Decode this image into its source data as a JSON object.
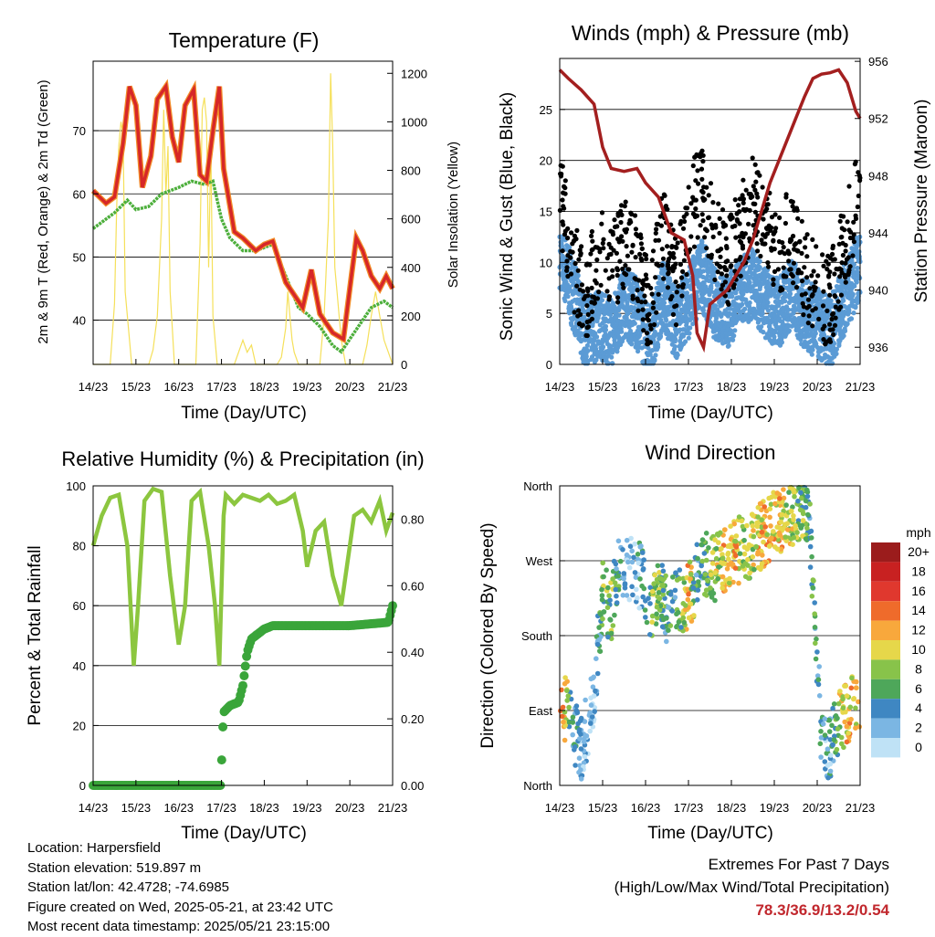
{
  "info": {
    "location": "Location: Harpersfield",
    "elevation": "Station elevation: 519.897 m",
    "latlon": "Station lat/lon: 42.4728; -74.6985",
    "created": "Figure created on Wed, 2025-05-21, at 23:42 UTC",
    "recent": "Most recent data timestamp: 2025/05/21 23:15:00"
  },
  "extremes": {
    "title": "Extremes For Past 7 Days",
    "subtitle": "(High/Low/Max Wind/Total Precipitation)",
    "values": "78.3/36.9/13.2/0.54"
  },
  "colors": {
    "temp": "#d62728",
    "temp9m": "#f28c28",
    "dewpoint": "#4daf3c",
    "solar": "#f5e05a",
    "wind": "#5b9bd5",
    "gust": "#000000",
    "pressure": "#a31f1f",
    "rh": "#8cc63f",
    "precip": "#3aa53a"
  },
  "chart_data": [
    {
      "type": "line",
      "title": "Temperature (F)",
      "xlabel": "Time (Day/UTC)",
      "ylabel": "2m & 9m T (Red, Orange) & 2m Td (Green)",
      "y2label": "Solar Insolation (Yellow)",
      "xticks": [
        "14/23",
        "15/23",
        "16/23",
        "17/23",
        "18/23",
        "19/23",
        "20/23",
        "21/23"
      ],
      "xlim": [
        0,
        7
      ],
      "ylim": [
        33,
        81
      ],
      "yticks": [
        40,
        50,
        60,
        70
      ],
      "y2lim": [
        0,
        1250
      ],
      "y2ticks": [
        0,
        200,
        400,
        600,
        800,
        1000,
        1200
      ],
      "series": [
        {
          "name": "2m T",
          "x": [
            0,
            0.3,
            0.5,
            0.7,
            0.85,
            1.0,
            1.15,
            1.35,
            1.5,
            1.7,
            1.85,
            2.0,
            2.15,
            2.35,
            2.5,
            2.65,
            2.8,
            2.95,
            3.05,
            3.3,
            3.5,
            3.8,
            4.0,
            4.2,
            4.5,
            4.7,
            4.9,
            5.1,
            5.3,
            5.6,
            5.85,
            6.0,
            6.15,
            6.3,
            6.5,
            6.7,
            6.85,
            7.0
          ],
          "y": [
            60.5,
            58.5,
            59.5,
            68,
            77,
            74,
            61,
            66,
            75,
            77,
            69,
            65,
            74,
            76.5,
            63,
            62,
            70,
            77,
            64,
            54,
            53,
            51,
            52,
            52.5,
            46,
            44,
            42,
            48,
            41,
            38,
            37,
            45,
            53,
            51,
            47,
            45,
            47,
            45
          ]
        },
        {
          "name": "2m Td",
          "x": [
            0,
            0.3,
            0.5,
            0.8,
            1.0,
            1.3,
            1.6,
            2.0,
            2.3,
            2.6,
            2.8,
            3.0,
            3.2,
            3.5,
            3.8,
            4.2,
            4.5,
            4.8,
            5.0,
            5.3,
            5.6,
            5.8,
            6.0,
            6.3,
            6.5,
            6.8,
            7.0
          ],
          "y": [
            54.5,
            56,
            57,
            59,
            57.5,
            58,
            60,
            61,
            62,
            61.5,
            62,
            56,
            53,
            51,
            51,
            52,
            47,
            42,
            41,
            39,
            36,
            35,
            37,
            40,
            42,
            43,
            42
          ]
        },
        {
          "name": "Solar Insolation",
          "axis": "y2",
          "x": [
            0,
            0.4,
            0.5,
            0.55,
            0.6,
            0.65,
            0.7,
            0.75,
            0.9,
            1.0,
            1.1,
            1.2,
            1.3,
            1.4,
            1.5,
            1.6,
            1.65,
            1.7,
            1.75,
            1.8,
            1.85,
            1.9,
            2.0,
            2.1,
            2.2,
            2.3,
            2.4,
            2.5,
            2.55,
            2.6,
            2.65,
            2.7,
            2.75,
            2.8,
            2.9,
            3.0,
            3.3,
            3.4,
            3.5,
            3.6,
            3.7,
            3.8,
            4.0,
            4.3,
            4.4,
            4.5,
            4.55,
            4.6,
            4.65,
            4.7,
            4.8,
            4.9,
            5.0,
            5.3,
            5.4,
            5.5,
            5.55,
            5.6,
            5.65,
            5.7,
            5.75,
            5.8,
            5.9,
            6.0,
            6.3,
            6.4,
            6.5,
            6.6,
            6.7,
            6.8,
            6.9,
            7.0
          ],
          "y": [
            0,
            0,
            250,
            650,
            900,
            1000,
            950,
            300,
            0,
            0,
            0,
            0,
            0,
            60,
            200,
            600,
            1050,
            700,
            900,
            300,
            150,
            0,
            0,
            0,
            0,
            0,
            0,
            500,
            1050,
            1100,
            1000,
            400,
            900,
            200,
            0,
            0,
            0,
            50,
            100,
            50,
            80,
            0,
            0,
            0,
            30,
            150,
            300,
            200,
            100,
            50,
            0,
            0,
            0,
            0,
            200,
            600,
            1200,
            900,
            400,
            300,
            200,
            100,
            0,
            0,
            0,
            80,
            200,
            300,
            200,
            100,
            50,
            0
          ]
        }
      ]
    },
    {
      "type": "scatter",
      "title": "Winds (mph) & Pressure (mb)",
      "xlabel": "Time (Day/UTC)",
      "ylabel": "Sonic Wind & Gust (Blue, Black)",
      "y2label": "Station Pressure (Maroon)",
      "xticks": [
        "14/23",
        "15/23",
        "16/23",
        "17/23",
        "18/23",
        "19/23",
        "20/23",
        "21/23"
      ],
      "xlim": [
        0,
        7
      ],
      "ylim": [
        0,
        30
      ],
      "yticks": [
        0,
        5,
        10,
        15,
        20,
        25
      ],
      "y2lim": [
        934.8,
        956.2
      ],
      "y2ticks": [
        936,
        940,
        944,
        948,
        952,
        956
      ],
      "series": [
        {
          "name": "Sonic Wind",
          "x": [
            0,
            0.3,
            0.6,
            0.9,
            1.2,
            1.5,
            1.8,
            2.1,
            2.4,
            2.7,
            3.0,
            3.3,
            3.6,
            3.9,
            4.2,
            4.5,
            4.8,
            5.1,
            5.4,
            5.7,
            6.0,
            6.3,
            6.6,
            6.9,
            7.0
          ],
          "y": [
            11,
            7,
            3,
            4,
            3,
            6,
            5,
            2,
            7,
            4,
            6,
            9,
            6,
            5,
            7,
            8,
            6,
            5,
            7,
            5,
            4,
            3,
            6,
            9,
            10
          ]
        },
        {
          "name": "Gust",
          "x": [
            0,
            0.3,
            0.6,
            0.9,
            1.2,
            1.5,
            1.8,
            2.1,
            2.4,
            2.7,
            3.0,
            3.3,
            3.6,
            3.9,
            4.2,
            4.5,
            4.8,
            5.1,
            5.4,
            5.7,
            6.0,
            6.3,
            6.6,
            6.9,
            7.0
          ],
          "y": [
            17,
            10,
            6,
            11,
            9,
            12,
            10,
            5,
            13,
            8,
            14,
            18,
            12,
            10,
            13,
            16,
            14,
            11,
            13,
            9,
            7,
            6,
            11,
            16,
            17
          ]
        },
        {
          "name": "Station Pressure",
          "axis": "y2",
          "x": [
            0,
            0.2,
            0.5,
            0.8,
            1.0,
            1.2,
            1.5,
            1.8,
            2.0,
            2.3,
            2.6,
            2.9,
            3.1,
            3.2,
            3.35,
            3.5,
            3.7,
            3.9,
            4.1,
            4.3,
            4.5,
            4.7,
            4.9,
            5.1,
            5.3,
            5.5,
            5.7,
            5.9,
            6.1,
            6.3,
            6.5,
            6.7,
            6.9,
            7.0
          ],
          "y": [
            955.4,
            954.8,
            954,
            953,
            950,
            948.5,
            948.3,
            948.5,
            947.5,
            946.5,
            944,
            943.5,
            941,
            937,
            936,
            939,
            939.5,
            940,
            941,
            942,
            943.5,
            945.5,
            947.5,
            949,
            950.5,
            952,
            953.5,
            954.8,
            955.1,
            955.2,
            955.4,
            954.5,
            952.5,
            952
          ]
        }
      ]
    },
    {
      "type": "line",
      "title": "Relative Humidity (%) & Precipitation (in)",
      "xlabel": "Time (Day/UTC)",
      "ylabel": "Percent & Total Rainfall",
      "xticks": [
        "14/23",
        "15/23",
        "16/23",
        "17/23",
        "18/23",
        "19/23",
        "20/23",
        "21/23"
      ],
      "xlim": [
        0,
        7
      ],
      "ylim": [
        0,
        100
      ],
      "yticks": [
        0,
        20,
        40,
        60,
        80,
        100
      ],
      "y2lim": [
        0,
        0.9
      ],
      "y2ticks": [
        "0.00",
        "0.20",
        "0.40",
        "0.60",
        "0.80"
      ],
      "series": [
        {
          "name": "Relative Humidity",
          "x": [
            0,
            0.2,
            0.4,
            0.6,
            0.8,
            0.95,
            1.05,
            1.2,
            1.4,
            1.6,
            1.8,
            2.0,
            2.15,
            2.3,
            2.5,
            2.7,
            2.85,
            2.95,
            3.05,
            3.1,
            3.3,
            3.5,
            3.7,
            3.9,
            4.1,
            4.3,
            4.5,
            4.7,
            4.9,
            5.0,
            5.2,
            5.4,
            5.6,
            5.8,
            5.95,
            6.1,
            6.3,
            6.5,
            6.7,
            6.85,
            7.0
          ],
          "y": [
            80,
            90,
            96,
            97,
            80,
            40,
            60,
            95,
            99,
            98,
            70,
            47,
            60,
            95,
            98,
            80,
            60,
            40,
            90,
            97,
            94,
            97,
            96,
            95,
            97,
            94,
            95,
            97,
            85,
            73,
            85,
            88,
            70,
            60,
            75,
            90,
            92,
            88,
            95,
            85,
            91
          ]
        },
        {
          "name": "Total Precipitation",
          "axis": "y2",
          "x": [
            0,
            2.98,
            3.0,
            3.02,
            3.05,
            3.2,
            3.4,
            3.5,
            3.6,
            3.7,
            3.8,
            3.9,
            4.0,
            4.2,
            4.5,
            5.0,
            6.0,
            6.9,
            7.0
          ],
          "y": [
            0,
            0,
            0.06,
            0.14,
            0.22,
            0.24,
            0.25,
            0.3,
            0.4,
            0.44,
            0.45,
            0.46,
            0.47,
            0.48,
            0.48,
            0.48,
            0.48,
            0.49,
            0.54
          ]
        }
      ]
    },
    {
      "type": "scatter",
      "title": "Wind Direction",
      "xlabel": "Time (Day/UTC)",
      "ylabel": "Direction (Colored By Speed)",
      "xticks": [
        "14/23",
        "15/23",
        "16/23",
        "17/23",
        "18/23",
        "19/23",
        "20/23",
        "21/23"
      ],
      "xlim": [
        0,
        7
      ],
      "ylim": [
        0,
        360
      ],
      "yticks": [
        "North",
        "East",
        "South",
        "West",
        "North"
      ],
      "legend": {
        "title": "mph",
        "position": "right",
        "labels": [
          "20+",
          "18",
          "16",
          "14",
          "12",
          "10",
          "8",
          "6",
          "4",
          "2",
          "0"
        ],
        "colors": [
          "#9b1c1c",
          "#c82121",
          "#e0382e",
          "#ef6b2b",
          "#f8a83c",
          "#e6d74a",
          "#88c34a",
          "#4ea75a",
          "#3f87c2",
          "#7bb6e3",
          "#bfe2f6"
        ]
      },
      "series": [
        {
          "name": "Direction",
          "x": [
            0.1,
            0.3,
            0.5,
            0.8,
            1.0,
            1.2,
            1.4,
            1.6,
            1.9,
            2.1,
            2.3,
            2.5,
            2.8,
            3.0,
            3.2,
            3.4,
            3.6,
            3.8,
            4.0,
            4.3,
            4.6,
            4.9,
            5.2,
            5.5,
            5.8,
            6.1,
            6.3,
            6.5,
            6.7,
            6.9
          ],
          "y": [
            95,
            70,
            40,
            110,
            230,
            210,
            270,
            260,
            250,
            200,
            240,
            210,
            220,
            230,
            250,
            265,
            260,
            270,
            280,
            285,
            295,
            310,
            320,
            330,
            335,
            60,
            40,
            80,
            90,
            95
          ],
          "speed": [
            12,
            4,
            2,
            1,
            6,
            8,
            4,
            2,
            3,
            6,
            8,
            4,
            6,
            12,
            4,
            6,
            8,
            10,
            12,
            8,
            10,
            12,
            10,
            8,
            6,
            4,
            3,
            8,
            12,
            10
          ]
        }
      ]
    }
  ]
}
